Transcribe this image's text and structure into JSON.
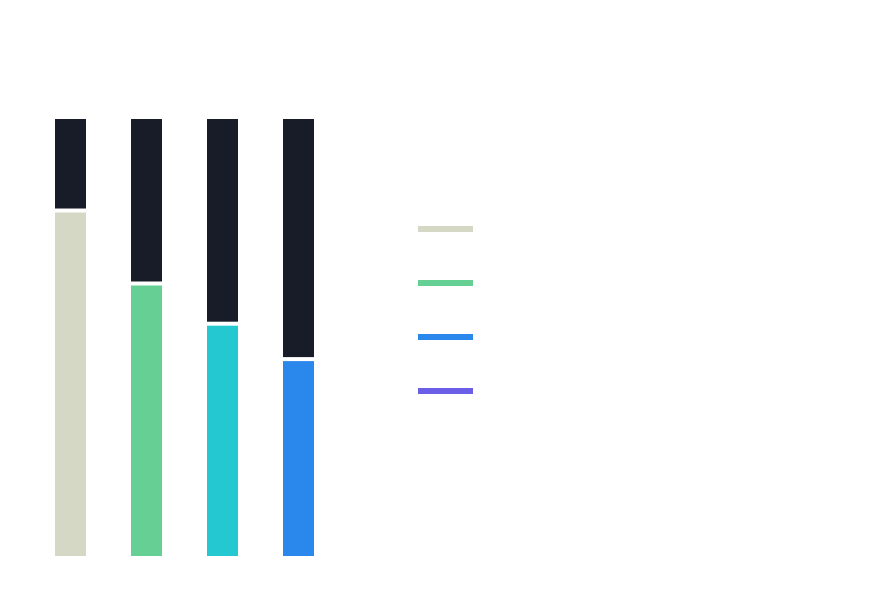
{
  "chart_data": {
    "type": "bar",
    "orientation": "vertical",
    "categories": [
      "",
      "",
      "",
      ""
    ],
    "values": [
      0.786,
      0.619,
      0.527,
      0.446
    ],
    "max_value": 1,
    "bar_colors": [
      "#d5d8c4",
      "#66cf93",
      "#23c8d1",
      "#2a87ec"
    ],
    "track_color": "#181c28",
    "legend": {
      "placement": "right",
      "swatch_colors": [
        "#d5d8c4",
        "#66cf93",
        "#2a87ec",
        "#6b5fe8"
      ],
      "labels": [
        "",
        "",
        "",
        ""
      ]
    }
  }
}
